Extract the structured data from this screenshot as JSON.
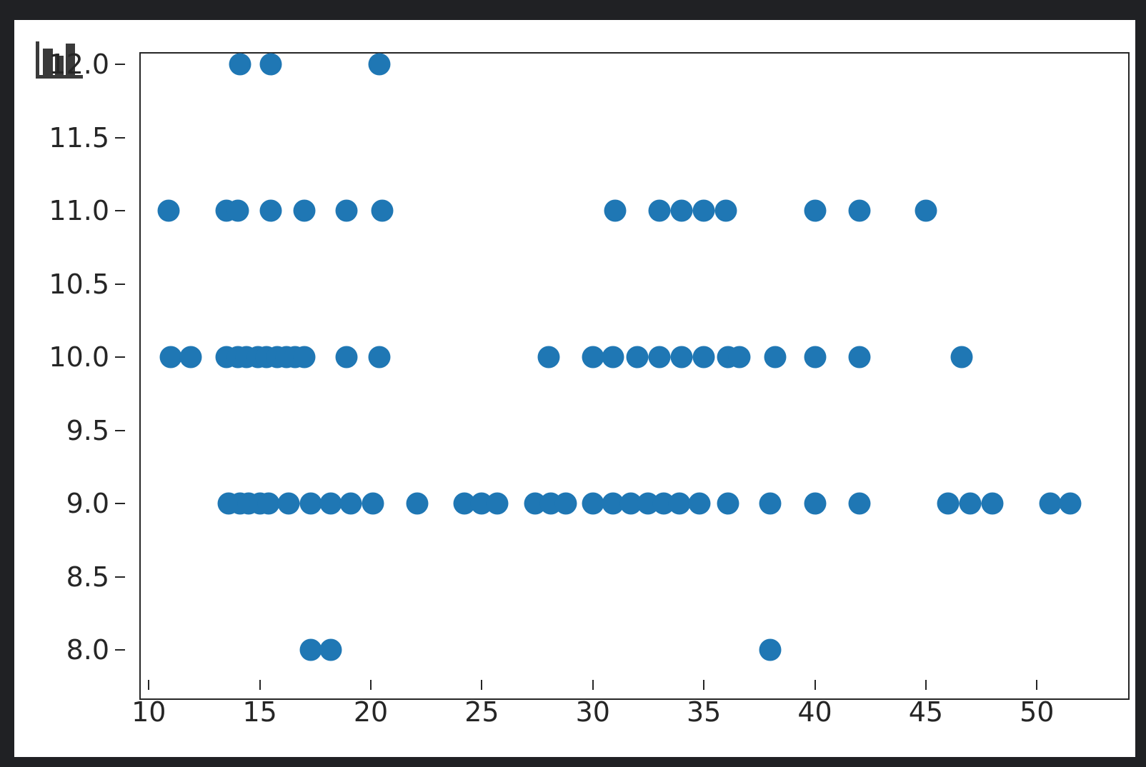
{
  "figure": {
    "background_color": "#ffffff",
    "surround_color": "#202124",
    "axis_color": "#262626"
  },
  "corner_icon": {
    "name": "bar-chart-icon",
    "color": "#3a3a3a"
  },
  "chart_data": {
    "type": "scatter",
    "title": "",
    "xlabel": "",
    "ylabel": "",
    "grid": false,
    "legend": null,
    "marker_color": "#1f77b4",
    "marker_diameter_px": 31,
    "xlim": [
      8.93,
      53.53
    ],
    "ylim": [
      7.8,
      12.22
    ],
    "x_tick_values": [
      10,
      15,
      20,
      25,
      30,
      35,
      40,
      45,
      50
    ],
    "x_tick_labels": [
      "10",
      "15",
      "20",
      "25",
      "30",
      "35",
      "40",
      "45",
      "50"
    ],
    "y_tick_values": [
      8.0,
      8.5,
      9.0,
      9.5,
      10.0,
      10.5,
      11.0,
      11.5,
      12.0
    ],
    "y_tick_labels": [
      "8.0",
      "8.5",
      "9.0",
      "9.5",
      "10.0",
      "10.5",
      "11.0",
      "11.5",
      "12.0"
    ],
    "series": [
      {
        "name": "points",
        "points": [
          [
            14.1,
            12
          ],
          [
            15.5,
            12
          ],
          [
            20.4,
            12
          ],
          [
            10.9,
            11
          ],
          [
            13.5,
            11
          ],
          [
            14.0,
            11
          ],
          [
            15.5,
            11
          ],
          [
            17.0,
            11
          ],
          [
            18.9,
            11
          ],
          [
            20.5,
            11
          ],
          [
            31.0,
            11
          ],
          [
            33.0,
            11
          ],
          [
            34.0,
            11
          ],
          [
            35.0,
            11
          ],
          [
            36.0,
            11
          ],
          [
            40.0,
            11
          ],
          [
            42.0,
            11
          ],
          [
            45.0,
            11
          ],
          [
            11.0,
            10
          ],
          [
            11.9,
            10
          ],
          [
            13.5,
            10
          ],
          [
            14.0,
            10
          ],
          [
            14.4,
            10
          ],
          [
            14.9,
            10
          ],
          [
            15.3,
            10
          ],
          [
            15.8,
            10
          ],
          [
            16.2,
            10
          ],
          [
            16.6,
            10
          ],
          [
            17.0,
            10
          ],
          [
            18.9,
            10
          ],
          [
            20.4,
            10
          ],
          [
            28.0,
            10
          ],
          [
            30.0,
            10
          ],
          [
            30.9,
            10
          ],
          [
            32.0,
            10
          ],
          [
            33.0,
            10
          ],
          [
            34.0,
            10
          ],
          [
            35.0,
            10
          ],
          [
            36.1,
            10
          ],
          [
            36.6,
            10
          ],
          [
            38.2,
            10
          ],
          [
            40.0,
            10
          ],
          [
            42.0,
            10
          ],
          [
            46.6,
            10
          ],
          [
            13.6,
            9
          ],
          [
            14.1,
            9
          ],
          [
            14.5,
            9
          ],
          [
            15.0,
            9
          ],
          [
            15.4,
            9
          ],
          [
            16.3,
            9
          ],
          [
            17.3,
            9
          ],
          [
            18.2,
            9
          ],
          [
            19.1,
            9
          ],
          [
            20.1,
            9
          ],
          [
            22.1,
            9
          ],
          [
            24.2,
            9
          ],
          [
            25.0,
            9
          ],
          [
            25.7,
            9
          ],
          [
            27.4,
            9
          ],
          [
            28.1,
            9
          ],
          [
            28.8,
            9
          ],
          [
            30.0,
            9
          ],
          [
            30.9,
            9
          ],
          [
            31.7,
            9
          ],
          [
            32.5,
            9
          ],
          [
            33.2,
            9
          ],
          [
            33.9,
            9
          ],
          [
            34.8,
            9
          ],
          [
            36.1,
            9
          ],
          [
            38.0,
            9
          ],
          [
            40.0,
            9
          ],
          [
            42.0,
            9
          ],
          [
            46.0,
            9
          ],
          [
            47.0,
            9
          ],
          [
            48.0,
            9
          ],
          [
            50.6,
            9
          ],
          [
            51.5,
            9
          ],
          [
            17.3,
            8
          ],
          [
            18.2,
            8
          ],
          [
            38.0,
            8
          ]
        ]
      }
    ]
  }
}
